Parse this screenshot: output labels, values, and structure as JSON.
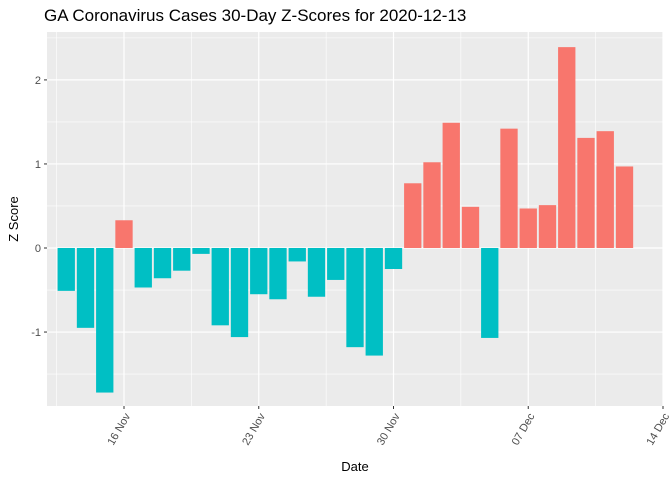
{
  "chart_data": {
    "type": "bar",
    "title": "GA Coronavirus Cases 30-Day Z-Scores for 2020-12-13",
    "xlabel": "Date",
    "ylabel": "Z Score",
    "x_start": "2020-11-13",
    "x_end": "2020-12-13",
    "xlim": [
      "2020-11-12",
      "2020-12-14"
    ],
    "ylim": [
      -1.88,
      2.57
    ],
    "y_ticks": [
      -1,
      0,
      1,
      2
    ],
    "x_tick_labels": [
      "16 Nov",
      "23 Nov",
      "30 Nov",
      "07 Dec",
      "14 Dec"
    ],
    "x_tick_dates": [
      "2020-11-16",
      "2020-11-23",
      "2020-11-30",
      "2020-12-07",
      "2020-12-14"
    ],
    "values": [
      -0.51,
      -0.95,
      -1.72,
      0.33,
      -0.47,
      -0.36,
      -0.27,
      -0.07,
      -0.92,
      -1.06,
      -0.55,
      -0.61,
      -0.16,
      -0.58,
      -0.38,
      -1.18,
      -1.28,
      -0.25,
      0.77,
      1.02,
      1.49,
      0.49,
      -1.07,
      1.42,
      0.47,
      0.51,
      2.39,
      1.31,
      1.39,
      0.97
    ],
    "colors": {
      "positive": "#F8766D",
      "negative": "#00BFC4"
    },
    "grid": true,
    "legend": "none"
  }
}
